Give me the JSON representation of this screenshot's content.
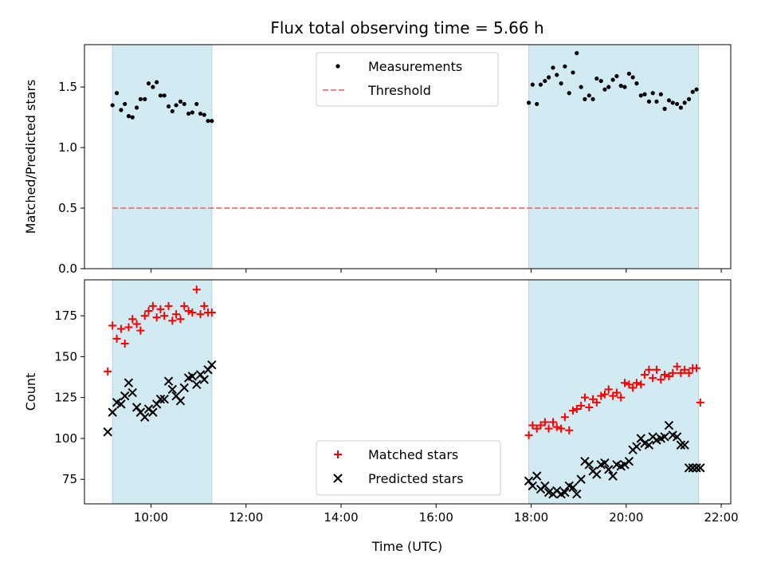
{
  "chart_data": {
    "type": "scatter",
    "title": "Flux total observing time = 5.66 h",
    "xlabel": "Time (UTC)",
    "x_unit": "hours UTC",
    "xlim": [
      8.6,
      22.2
    ],
    "xticks": [
      {
        "value": 10,
        "label": "10:00"
      },
      {
        "value": 12,
        "label": "12:00"
      },
      {
        "value": 14,
        "label": "14:00"
      },
      {
        "value": 16,
        "label": "16:00"
      },
      {
        "value": 18,
        "label": "18:00"
      },
      {
        "value": 20,
        "label": "20:00"
      },
      {
        "value": 22,
        "label": "22:00"
      }
    ],
    "shaded_intervals": [
      [
        9.19,
        11.28
      ],
      [
        17.95,
        21.52
      ]
    ],
    "shade_color": "#add8e6",
    "panels": [
      {
        "ylabel": "Matched/Predicted stars",
        "ylim": [
          0,
          1.85
        ],
        "yticks": [
          {
            "value": 0,
            "label": "0.0"
          },
          {
            "value": 0.5,
            "label": "0.5"
          },
          {
            "value": 1,
            "label": "1.0"
          },
          {
            "value": 1.5,
            "label": "1.5"
          }
        ],
        "legend_position": "top-center",
        "series": [
          {
            "name": "Measurements",
            "marker": "dot",
            "color": "#000000",
            "x": [
              9.19,
              9.28,
              9.37,
              9.45,
              9.53,
              9.61,
              9.7,
              9.78,
              9.87,
              9.95,
              10.04,
              10.12,
              10.2,
              10.28,
              10.37,
              10.45,
              10.53,
              10.62,
              10.7,
              10.79,
              10.87,
              10.96,
              11.04,
              11.12,
              11.2,
              11.28,
              17.95,
              18.03,
              18.12,
              18.2,
              18.29,
              18.37,
              18.46,
              18.54,
              18.63,
              18.71,
              18.8,
              18.88,
              18.96,
              19.05,
              19.13,
              19.22,
              19.3,
              19.38,
              19.47,
              19.55,
              19.63,
              19.72,
              19.8,
              19.89,
              19.97,
              20.06,
              20.14,
              20.22,
              20.31,
              20.39,
              20.48,
              20.56,
              20.64,
              20.73,
              20.81,
              20.9,
              20.98,
              21.07,
              21.15,
              21.23,
              21.32,
              21.4,
              21.48
            ],
            "y": [
              1.35,
              1.45,
              1.31,
              1.36,
              1.26,
              1.25,
              1.33,
              1.4,
              1.4,
              1.53,
              1.5,
              1.54,
              1.43,
              1.43,
              1.34,
              1.3,
              1.35,
              1.38,
              1.36,
              1.28,
              1.29,
              1.36,
              1.28,
              1.27,
              1.22,
              1.22,
              1.37,
              1.52,
              1.36,
              1.52,
              1.55,
              1.58,
              1.66,
              1.6,
              1.53,
              1.67,
              1.45,
              1.62,
              1.78,
              1.5,
              1.4,
              1.43,
              1.4,
              1.57,
              1.55,
              1.48,
              1.5,
              1.56,
              1.59,
              1.51,
              1.5,
              1.61,
              1.58,
              1.53,
              1.43,
              1.44,
              1.38,
              1.45,
              1.38,
              1.44,
              1.32,
              1.39,
              1.37,
              1.36,
              1.33,
              1.37,
              1.4,
              1.46,
              1.48
            ]
          },
          {
            "name": "Threshold",
            "marker": "dashed-line",
            "color": "#f08080",
            "x": [
              9.19,
              21.52
            ],
            "y": [
              0.5,
              0.5
            ]
          }
        ]
      },
      {
        "ylabel": "Count",
        "ylim": [
          60,
          197
        ],
        "yticks": [
          {
            "value": 75,
            "label": "75"
          },
          {
            "value": 100,
            "label": "100"
          },
          {
            "value": 125,
            "label": "125"
          },
          {
            "value": 150,
            "label": "150"
          },
          {
            "value": 175,
            "label": "175"
          }
        ],
        "legend_position": "lower-center",
        "series": [
          {
            "name": "Matched stars",
            "marker": "plus",
            "color": "#ff0000",
            "x": [
              9.09,
              9.19,
              9.28,
              9.37,
              9.45,
              9.53,
              9.61,
              9.7,
              9.78,
              9.87,
              9.95,
              10.04,
              10.12,
              10.2,
              10.28,
              10.37,
              10.45,
              10.53,
              10.62,
              10.7,
              10.79,
              10.87,
              10.96,
              11.04,
              11.12,
              11.2,
              11.28,
              17.95,
              18.03,
              18.12,
              18.2,
              18.29,
              18.37,
              18.46,
              18.54,
              18.63,
              18.71,
              18.8,
              18.88,
              18.96,
              19.05,
              19.13,
              19.22,
              19.3,
              19.38,
              19.47,
              19.55,
              19.63,
              19.72,
              19.8,
              19.89,
              19.97,
              20.06,
              20.14,
              20.22,
              20.31,
              20.39,
              20.48,
              20.56,
              20.64,
              20.73,
              20.81,
              20.9,
              20.98,
              21.07,
              21.15,
              21.23,
              21.32,
              21.4,
              21.48,
              21.56
            ],
            "y": [
              141,
              169,
              161,
              167,
              158,
              168,
              173,
              170,
              166,
              175,
              178,
              181,
              174,
              179,
              175,
              181,
              172,
              176,
              173,
              181,
              178,
              177,
              191,
              176,
              181,
              177,
              177,
              102,
              108,
              106,
              108,
              110,
              106,
              110,
              107,
              106,
              113,
              105,
              117,
              118,
              120,
              125,
              119,
              124,
              122,
              126,
              127,
              130,
              126,
              128,
              125,
              134,
              133,
              131,
              134,
              133,
              139,
              142,
              137,
              142,
              136,
              139,
              138,
              140,
              144,
              140,
              142,
              140,
              143,
              143,
              122
            ]
          },
          {
            "name": "Predicted stars",
            "marker": "x",
            "color": "#000000",
            "x": [
              9.09,
              9.19,
              9.28,
              9.37,
              9.45,
              9.53,
              9.61,
              9.7,
              9.78,
              9.87,
              9.95,
              10.04,
              10.12,
              10.2,
              10.28,
              10.37,
              10.45,
              10.53,
              10.62,
              10.7,
              10.79,
              10.87,
              10.96,
              11.04,
              11.12,
              11.2,
              11.28,
              17.95,
              18.03,
              18.12,
              18.2,
              18.29,
              18.37,
              18.46,
              18.54,
              18.63,
              18.71,
              18.8,
              18.88,
              18.96,
              19.05,
              19.13,
              19.22,
              19.3,
              19.38,
              19.47,
              19.55,
              19.63,
              19.72,
              19.8,
              19.89,
              19.97,
              20.06,
              20.14,
              20.22,
              20.31,
              20.39,
              20.48,
              20.56,
              20.64,
              20.73,
              20.81,
              20.9,
              20.98,
              21.07,
              21.15,
              21.23,
              21.32,
              21.4,
              21.48,
              21.56
            ],
            "y": [
              104,
              116,
              122,
              121,
              126,
              134,
              128,
              119,
              116,
              113,
              118,
              116,
              121,
              124,
              124,
              135,
              130,
              126,
              123,
              131,
              137,
              138,
              133,
              139,
              136,
              142,
              145,
              74,
              71,
              77,
              69,
              71,
              67,
              66,
              68,
              66,
              67,
              71,
              70,
              66,
              75,
              86,
              84,
              80,
              78,
              84,
              85,
              81,
              77,
              84,
              83,
              84,
              86,
              93,
              95,
              100,
              97,
              96,
              101,
              99,
              100,
              101,
              108,
              102,
              101,
              96,
              96,
              82,
              82,
              82,
              82
            ]
          }
        ]
      }
    ]
  }
}
